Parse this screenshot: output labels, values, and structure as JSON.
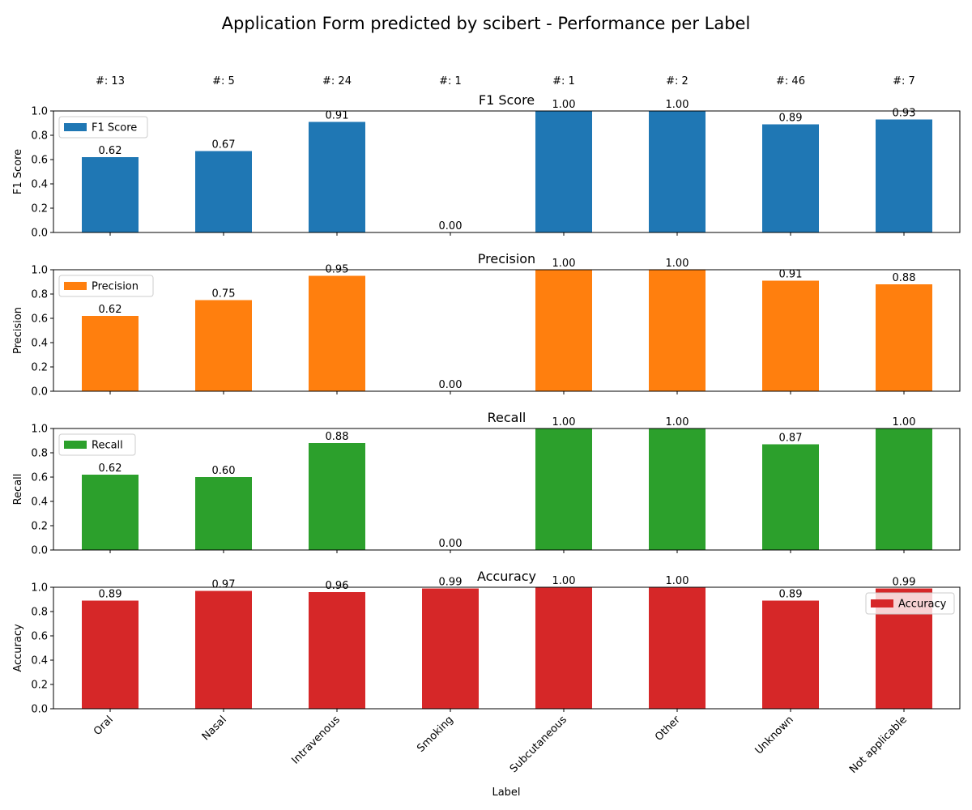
{
  "chart_data": {
    "type": "bar",
    "title": "Application Form predicted by scibert - Performance per Label",
    "xlabel": "Label",
    "categories": [
      "Oral",
      "Nasal",
      "Intravenous",
      "Smoking",
      "Subcutaneous",
      "Other",
      "Unknown",
      "Not applicable"
    ],
    "counts": [
      "#: 13",
      "#: 5",
      "#: 24",
      "#: 1",
      "#: 1",
      "#: 2",
      "#: 46",
      "#: 7"
    ],
    "ylim": [
      0,
      1
    ],
    "yticks": [
      "0.0",
      "0.2",
      "0.4",
      "0.6",
      "0.8",
      "1.0"
    ],
    "grid": false,
    "panels": [
      {
        "title": "F1 Score",
        "ylabel": "F1 Score",
        "legend": "F1 Score",
        "legend_loc": "upper-left",
        "color": "#1f77b4",
        "values": [
          0.62,
          0.67,
          0.91,
          0.0,
          1.0,
          1.0,
          0.89,
          0.93
        ],
        "labels": [
          "0.62",
          "0.67",
          "0.91",
          "0.00",
          "1.00",
          "1.00",
          "0.89",
          "0.93"
        ]
      },
      {
        "title": "Precision",
        "ylabel": "Precision",
        "legend": "Precision",
        "legend_loc": "upper-left",
        "color": "#ff7f0e",
        "values": [
          0.62,
          0.75,
          0.95,
          0.0,
          1.0,
          1.0,
          0.91,
          0.88
        ],
        "labels": [
          "0.62",
          "0.75",
          "0.95",
          "0.00",
          "1.00",
          "1.00",
          "0.91",
          "0.88"
        ]
      },
      {
        "title": "Recall",
        "ylabel": "Recall",
        "legend": "Recall",
        "legend_loc": "upper-left",
        "color": "#2ca02c",
        "values": [
          0.62,
          0.6,
          0.88,
          0.0,
          1.0,
          1.0,
          0.87,
          1.0
        ],
        "labels": [
          "0.62",
          "0.60",
          "0.88",
          "0.00",
          "1.00",
          "1.00",
          "0.87",
          "1.00"
        ]
      },
      {
        "title": "Accuracy",
        "ylabel": "Accuracy",
        "legend": "Accuracy",
        "legend_loc": "upper-right",
        "color": "#d62728",
        "values": [
          0.89,
          0.97,
          0.96,
          0.99,
          1.0,
          1.0,
          0.89,
          0.99
        ],
        "labels": [
          "0.89",
          "0.97",
          "0.96",
          "0.99",
          "1.00",
          "1.00",
          "0.89",
          "0.99"
        ]
      }
    ]
  }
}
